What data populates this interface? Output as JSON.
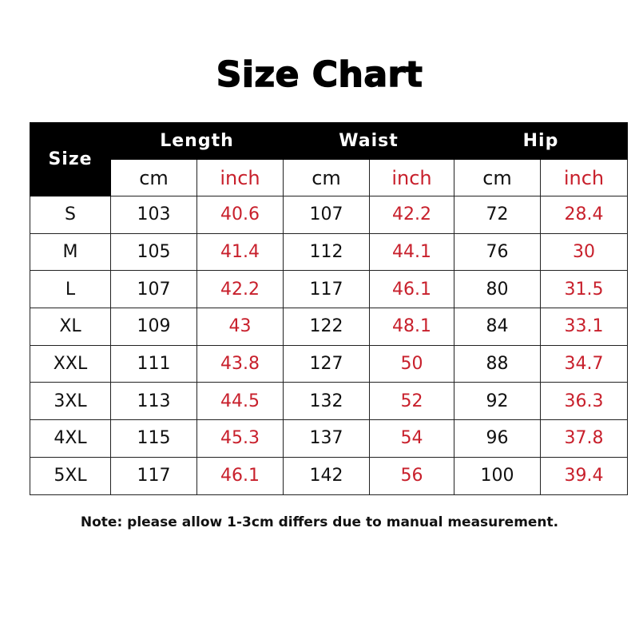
{
  "title": "Size Chart",
  "headers": {
    "size": "Size",
    "groups": [
      "Length",
      "Waist",
      "Hip"
    ],
    "units": [
      "cm",
      "inch",
      "cm",
      "inch",
      "cm",
      "inch"
    ]
  },
  "rows": [
    [
      "S",
      "103",
      "40.6",
      "107",
      "42.2",
      "72",
      "28.4"
    ],
    [
      "M",
      "105",
      "41.4",
      "112",
      "44.1",
      "76",
      "30"
    ],
    [
      "L",
      "107",
      "42.2",
      "117",
      "46.1",
      "80",
      "31.5"
    ],
    [
      "XL",
      "109",
      "43",
      "122",
      "48.1",
      "84",
      "33.1"
    ],
    [
      "XXL",
      "111",
      "43.8",
      "127",
      "50",
      "88",
      "34.7"
    ],
    [
      "3XL",
      "113",
      "44.5",
      "132",
      "52",
      "92",
      "36.3"
    ],
    [
      "4XL",
      "115",
      "45.3",
      "137",
      "54",
      "96",
      "37.8"
    ],
    [
      "5XL",
      "117",
      "46.1",
      "142",
      "56",
      "100",
      "39.4"
    ]
  ],
  "note": "Note: please allow 1-3cm differs due to manual measurement.",
  "colors": {
    "inch": "#c8202c",
    "header": "#000000"
  }
}
